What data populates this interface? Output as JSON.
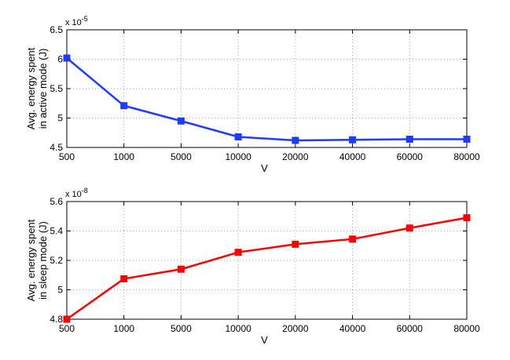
{
  "chart_data": [
    {
      "type": "line",
      "categories": [
        "500",
        "1000",
        "5000",
        "10000",
        "20000",
        "40000",
        "60000",
        "80000"
      ],
      "series": [
        {
          "values": [
            6.02,
            5.21,
            4.95,
            4.68,
            4.62,
            4.63,
            4.64,
            4.64
          ],
          "color": "#1f3bff",
          "marker": "square"
        }
      ],
      "xlabel": "V",
      "ylabel_lines": [
        "Avg. energy spent",
        "in active mode (J)"
      ],
      "ylim": [
        4.5,
        6.5
      ],
      "yticks": [
        "4.5",
        "5",
        "5.5",
        "6",
        "6.5"
      ],
      "ytick_values": [
        4.5,
        5,
        5.5,
        6,
        6.5
      ],
      "y_exponent_text": "x 10",
      "y_exponent": "-5",
      "grid": true
    },
    {
      "type": "line",
      "categories": [
        "500",
        "1000",
        "5000",
        "10000",
        "20000",
        "40000",
        "60000",
        "80000"
      ],
      "series": [
        {
          "values": [
            4.8,
            5.075,
            5.14,
            5.255,
            5.31,
            5.345,
            5.42,
            5.49
          ],
          "color": "#ff0000",
          "marker": "square"
        }
      ],
      "xlabel": "V",
      "ylabel_lines": [
        "Avg. energy spent",
        "in sleep mode (J)"
      ],
      "ylim": [
        4.8,
        5.6
      ],
      "yticks": [
        "4.8",
        "5",
        "5.2",
        "5.4",
        "5.6"
      ],
      "ytick_values": [
        4.8,
        5.0,
        5.2,
        5.4,
        5.6
      ],
      "y_exponent_text": "x 10",
      "y_exponent": "-8",
      "grid": true
    }
  ]
}
